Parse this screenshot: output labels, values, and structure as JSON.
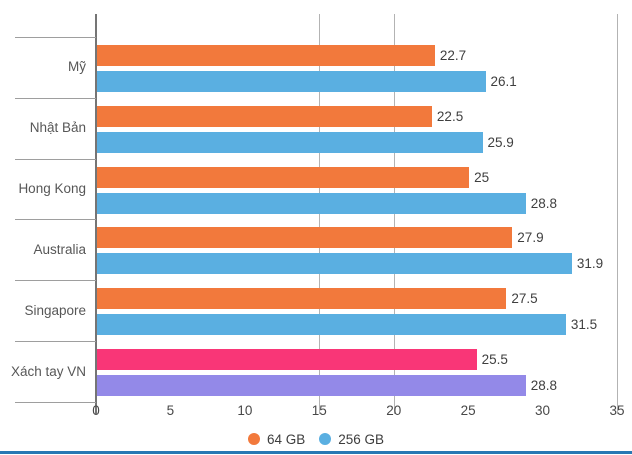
{
  "page": {
    "background": "#ffffff",
    "divider_color": "#2878b4"
  },
  "chart_data": {
    "type": "bar",
    "orientation": "horizontal",
    "categories": [
      "Mỹ",
      "Nhật Bản",
      "Hong Kong",
      "Australia",
      "Singapore",
      "Xách tay VN"
    ],
    "series": [
      {
        "name": "64 GB",
        "color": "#f2793c",
        "values": [
          22.7,
          22.5,
          25,
          27.9,
          27.5,
          25.5
        ],
        "value_labels": [
          "22.7",
          "22.5",
          "25",
          "27.9",
          "27.5",
          "25.5"
        ],
        "point_colors": [
          null,
          null,
          null,
          null,
          null,
          "#f93677"
        ]
      },
      {
        "name": "256 GB",
        "color": "#5aafe1",
        "values": [
          26.1,
          25.9,
          28.8,
          31.9,
          31.5,
          28.8
        ],
        "value_labels": [
          "26.1",
          "25.9",
          "28.8",
          "31.9",
          "31.5",
          "28.8"
        ],
        "point_colors": [
          null,
          null,
          null,
          null,
          null,
          "#9389e8"
        ]
      }
    ],
    "xlim": [
      0,
      35
    ],
    "x_ticks": [
      0,
      5,
      10,
      15,
      20,
      25,
      30,
      35
    ],
    "x_tick_labels": [
      "0",
      "5",
      "10",
      "15",
      "20",
      "25",
      "30",
      "35"
    ],
    "gridlines_at": [
      15,
      20,
      35
    ],
    "grid_on": true,
    "grid_color": "#b3b3b3",
    "axis_color": "#757575",
    "separator_color": "#9e9e9e",
    "value_label_color": "#3f3f3f",
    "category_label_color": "#575757",
    "tick_label_color": "#484848",
    "legend": {
      "position": "bottom",
      "entries": [
        {
          "label": "64 GB",
          "color": "#f2793c"
        },
        {
          "label": "256 GB",
          "color": "#5aafe1"
        }
      ]
    }
  }
}
